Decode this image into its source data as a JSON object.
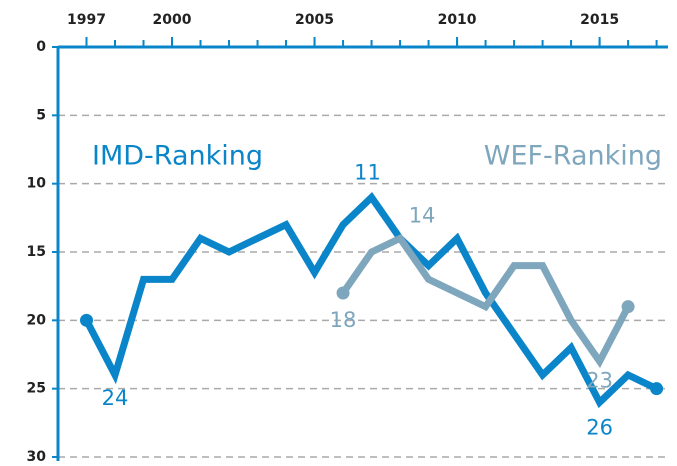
{
  "chart_data": {
    "type": "line",
    "x": [
      1997,
      1998,
      1999,
      2000,
      2001,
      2002,
      2003,
      2004,
      2005,
      2006,
      2007,
      2008,
      2009,
      2010,
      2011,
      2012,
      2013,
      2014,
      2015,
      2016,
      2017
    ],
    "series": [
      {
        "name": "IMD-Ranking",
        "color": "#0a85c9",
        "values": [
          20,
          24,
          17,
          17,
          14,
          15,
          14,
          13,
          16.5,
          13,
          11,
          14,
          16,
          14,
          18,
          21,
          24,
          22,
          26,
          24,
          25
        ]
      },
      {
        "name": "WEF-Ranking",
        "color": "#7ea6bd",
        "values": [
          null,
          null,
          null,
          null,
          null,
          null,
          null,
          null,
          null,
          18,
          15,
          14,
          17,
          18,
          19,
          16,
          16,
          20,
          23,
          19,
          null
        ]
      }
    ],
    "xlim": [
      1996,
      2017.4
    ],
    "xticks": [
      1997,
      2000,
      2005,
      2010,
      2015
    ],
    "ylim": [
      0,
      30
    ],
    "yticks": [
      0,
      5,
      10,
      15,
      20,
      25,
      30
    ],
    "y_inverted": true,
    "grid": true
  }
}
